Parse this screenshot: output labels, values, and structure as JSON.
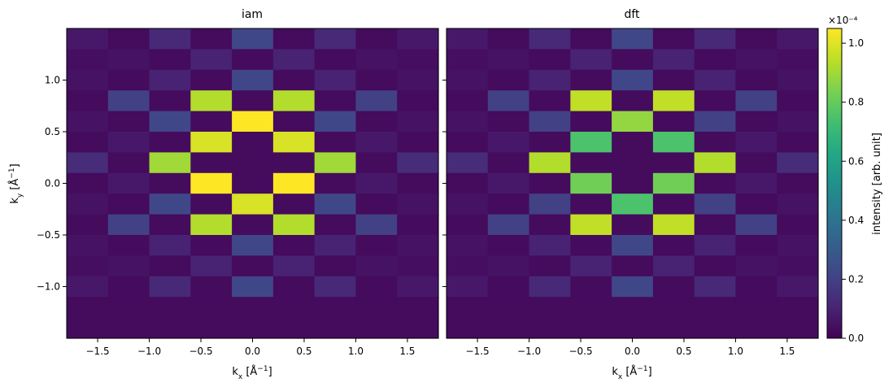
{
  "chart_data": [
    {
      "type": "heatmap",
      "title": "iam",
      "xlabel": "k_x [Å⁻¹]",
      "ylabel": "k_y [Å⁻¹]",
      "x_centers": [
        -1.6,
        -1.2,
        -0.8,
        -0.4,
        0.0,
        0.4,
        0.8,
        1.2,
        1.6
      ],
      "y_centers": [
        1.4,
        1.2,
        1.0,
        0.8,
        0.6,
        0.4,
        0.2,
        0.0,
        -0.2,
        -0.4,
        -0.6,
        -0.8,
        -1.0,
        -1.2,
        -1.4
      ],
      "xlim": [
        -1.8,
        1.8
      ],
      "ylim": [
        -1.5,
        1.5
      ],
      "xticks": [
        -1.5,
        -1.0,
        -0.5,
        0.0,
        0.5,
        1.0,
        1.5
      ],
      "yticks": [
        1.0,
        0.5,
        0.0,
        -0.5,
        -1.0
      ],
      "xtick_labels": [
        "−1.5",
        "−1.0",
        "−0.5",
        "0.0",
        "0.5",
        "1.0",
        "1.5"
      ],
      "ytick_labels": [
        "1.0",
        "0.5",
        "0.0",
        "−0.5",
        "−1.0"
      ],
      "value_unit": 0.0001,
      "values": [
        [
          0.07,
          0.03,
          0.12,
          0.03,
          0.22,
          0.03,
          0.12,
          0.03,
          0.07
        ],
        [
          0.04,
          0.05,
          0.03,
          0.1,
          0.03,
          0.1,
          0.03,
          0.05,
          0.04
        ],
        [
          0.05,
          0.03,
          0.1,
          0.03,
          0.22,
          0.03,
          0.1,
          0.03,
          0.05
        ],
        [
          0.03,
          0.2,
          0.03,
          0.93,
          0.03,
          0.93,
          0.03,
          0.2,
          0.03
        ],
        [
          0.05,
          0.03,
          0.22,
          0.03,
          1.05,
          0.03,
          0.22,
          0.03,
          0.05
        ],
        [
          0.03,
          0.07,
          0.03,
          0.99,
          0.03,
          0.99,
          0.03,
          0.07,
          0.03
        ],
        [
          0.13,
          0.03,
          0.9,
          0.03,
          0.03,
          0.03,
          0.9,
          0.03,
          0.13
        ],
        [
          0.03,
          0.07,
          0.03,
          1.05,
          0.03,
          1.05,
          0.03,
          0.07,
          0.03
        ],
        [
          0.05,
          0.03,
          0.22,
          0.03,
          0.99,
          0.03,
          0.22,
          0.03,
          0.05
        ],
        [
          0.03,
          0.2,
          0.03,
          0.93,
          0.03,
          0.93,
          0.03,
          0.2,
          0.03
        ],
        [
          0.05,
          0.03,
          0.1,
          0.03,
          0.22,
          0.03,
          0.1,
          0.03,
          0.05
        ],
        [
          0.04,
          0.05,
          0.03,
          0.1,
          0.03,
          0.1,
          0.03,
          0.05,
          0.04
        ],
        [
          0.07,
          0.03,
          0.12,
          0.03,
          0.22,
          0.03,
          0.12,
          0.03,
          0.07
        ],
        [
          0.03,
          0.03,
          0.03,
          0.03,
          0.03,
          0.03,
          0.03,
          0.03,
          0.03
        ],
        [
          0.03,
          0.03,
          0.03,
          0.03,
          0.03,
          0.03,
          0.03,
          0.03,
          0.03
        ]
      ]
    },
    {
      "type": "heatmap",
      "title": "dft",
      "xlabel": "k_x [Å⁻¹]",
      "x_centers": [
        -1.6,
        -1.2,
        -0.8,
        -0.4,
        0.0,
        0.4,
        0.8,
        1.2,
        1.6
      ],
      "y_centers": [
        1.4,
        1.2,
        1.0,
        0.8,
        0.6,
        0.4,
        0.2,
        0.0,
        -0.2,
        -0.4,
        -0.6,
        -0.8,
        -1.0,
        -1.2,
        -1.4
      ],
      "xlim": [
        -1.8,
        1.8
      ],
      "ylim": [
        -1.5,
        1.5
      ],
      "xticks": [
        -1.5,
        -1.0,
        -0.5,
        0.0,
        0.5,
        1.0,
        1.5
      ],
      "xtick_labels": [
        "−1.5",
        "−1.0",
        "−0.5",
        "0.0",
        "0.5",
        "1.0",
        "1.5"
      ],
      "value_unit": 0.0001,
      "values": [
        [
          0.07,
          0.03,
          0.12,
          0.03,
          0.22,
          0.03,
          0.12,
          0.03,
          0.07
        ],
        [
          0.04,
          0.05,
          0.03,
          0.1,
          0.03,
          0.1,
          0.03,
          0.05,
          0.04
        ],
        [
          0.05,
          0.03,
          0.1,
          0.03,
          0.22,
          0.03,
          0.1,
          0.03,
          0.05
        ],
        [
          0.03,
          0.2,
          0.03,
          0.95,
          0.03,
          0.95,
          0.03,
          0.2,
          0.03
        ],
        [
          0.05,
          0.03,
          0.2,
          0.03,
          0.88,
          0.03,
          0.2,
          0.03,
          0.05
        ],
        [
          0.03,
          0.07,
          0.03,
          0.75,
          0.03,
          0.75,
          0.03,
          0.07,
          0.03
        ],
        [
          0.13,
          0.03,
          0.93,
          0.03,
          0.03,
          0.03,
          0.93,
          0.03,
          0.13
        ],
        [
          0.03,
          0.07,
          0.03,
          0.82,
          0.03,
          0.82,
          0.03,
          0.07,
          0.03
        ],
        [
          0.05,
          0.03,
          0.2,
          0.03,
          0.75,
          0.03,
          0.2,
          0.03,
          0.05
        ],
        [
          0.03,
          0.2,
          0.03,
          0.95,
          0.03,
          0.95,
          0.03,
          0.2,
          0.03
        ],
        [
          0.05,
          0.03,
          0.1,
          0.03,
          0.22,
          0.03,
          0.1,
          0.03,
          0.05
        ],
        [
          0.04,
          0.05,
          0.03,
          0.1,
          0.03,
          0.1,
          0.03,
          0.05,
          0.04
        ],
        [
          0.07,
          0.03,
          0.12,
          0.03,
          0.22,
          0.03,
          0.12,
          0.03,
          0.07
        ],
        [
          0.03,
          0.03,
          0.03,
          0.03,
          0.03,
          0.03,
          0.03,
          0.03,
          0.03
        ],
        [
          0.03,
          0.03,
          0.03,
          0.03,
          0.03,
          0.03,
          0.03,
          0.03,
          0.03
        ]
      ]
    }
  ],
  "colorbar": {
    "label": "intensity [arb. unit]",
    "scale_text": "×10⁻⁴",
    "range": [
      0.0,
      1.05
    ],
    "ticks": [
      0.0,
      0.2,
      0.4,
      0.6,
      0.8,
      1.0
    ],
    "tick_labels": [
      "0.0",
      "0.2",
      "0.4",
      "0.6",
      "0.8",
      "1.0"
    ],
    "colormap": "viridis"
  }
}
